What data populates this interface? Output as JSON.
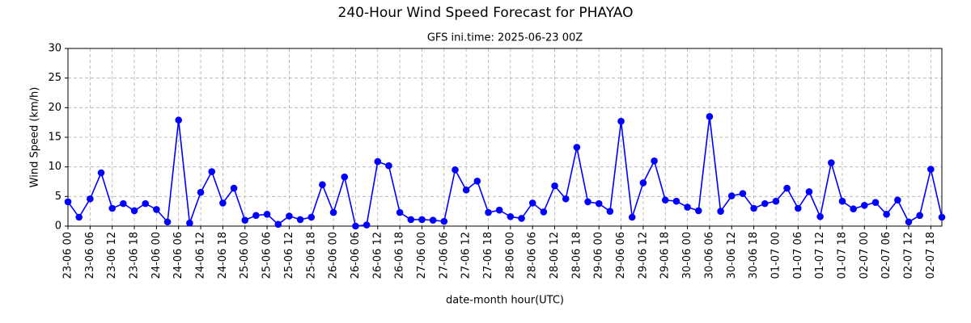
{
  "chart_data": {
    "type": "line",
    "title": "240-Hour Wind Speed Forecast for PHAYAO",
    "subtitle": "GFS ini.time: 2025-06-23 00Z",
    "x_label": "date-month hour(UTC)",
    "y_label": "Wind Speed (km/h)",
    "categories": [
      "23-06 00",
      null,
      "23-06 06",
      null,
      "23-06 12",
      null,
      "23-06 18",
      null,
      "24-06 00",
      null,
      "24-06 06",
      null,
      "24-06 12",
      null,
      "24-06 18",
      null,
      "25-06 00",
      null,
      "25-06 06",
      null,
      "25-06 12",
      null,
      "25-06 18",
      null,
      "26-06 00",
      null,
      "26-06 06",
      null,
      "26-06 12",
      null,
      "26-06 18",
      null,
      "27-06 00",
      null,
      "27-06 06",
      null,
      "27-06 12",
      null,
      "27-06 18",
      null,
      "28-06 00",
      null,
      "28-06 06",
      null,
      "28-06 12",
      null,
      "28-06 18",
      null,
      "29-06 00",
      null,
      "29-06 06",
      null,
      "29-06 12",
      null,
      "29-06 18",
      null,
      "30-06 00",
      null,
      "30-06 06",
      null,
      "30-06 12",
      null,
      "30-06 18",
      null,
      "01-07 00",
      null,
      "01-07 06",
      null,
      "01-07 12",
      null,
      "01-07 18",
      null,
      "02-07 00",
      null,
      "02-07 06",
      null,
      "02-07 12",
      null,
      "02-07 18",
      null
    ],
    "series": [
      {
        "name": "Wind Speed",
        "color": "#0000ff",
        "values": [
          4.1,
          1.5,
          4.6,
          9.0,
          3.0,
          3.8,
          2.6,
          3.8,
          2.8,
          0.7,
          17.9,
          0.5,
          5.7,
          9.2,
          3.9,
          6.4,
          1.0,
          1.8,
          2.0,
          0.3,
          1.7,
          1.1,
          1.5,
          7.0,
          2.3,
          8.3,
          0.0,
          0.2,
          10.9,
          10.2,
          2.3,
          1.1,
          1.1,
          1.0,
          0.8,
          9.5,
          6.1,
          7.6,
          2.3,
          2.7,
          1.6,
          1.3,
          3.9,
          2.4,
          6.8,
          4.6,
          13.3,
          4.1,
          3.8,
          2.5,
          17.7,
          1.5,
          7.3,
          11.0,
          4.4,
          4.2,
          3.2,
          2.6,
          18.5,
          2.5,
          5.1,
          5.5,
          3.0,
          3.8,
          4.2,
          6.4,
          3.0,
          5.8,
          1.6,
          10.7,
          4.2,
          2.9,
          3.5,
          4.0,
          2.0,
          4.4,
          0.7,
          1.8,
          9.6,
          1.5
        ]
      }
    ],
    "ylim": [
      0,
      30
    ],
    "yticks": [
      0,
      5,
      10,
      15,
      20,
      25,
      30
    ],
    "grid": true
  }
}
